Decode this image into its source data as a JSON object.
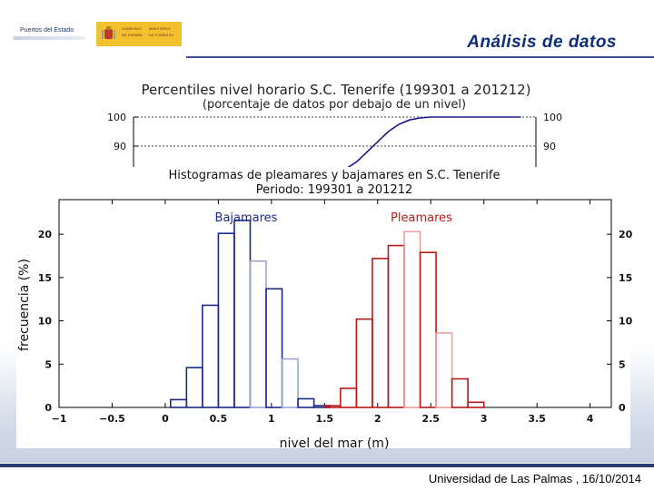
{
  "header": {
    "title": "Análisis de datos",
    "logo_ports_text": "Puertos del Estado",
    "logo_gov_text": [
      "GOBIERNO",
      "DE ESPAÑA",
      "MINISTERIO",
      "DE FOMENTO"
    ]
  },
  "footer": {
    "text": "Universidad de Las Palmas , 16/10/2014"
  },
  "chart_data": [
    {
      "type": "line",
      "title": "Percentiles nivel horario S.C. Tenerife (199301 a 201212)",
      "subtitle": "(porcentaje de datos por debajo de un nivel)",
      "ytick_labels": [
        "90",
        "100"
      ],
      "ylim": [
        80,
        100
      ],
      "x": [
        1.7,
        1.8,
        1.9,
        2.0,
        2.1,
        2.2,
        2.3,
        2.4,
        2.5,
        2.6,
        3.0,
        3.35
      ],
      "series": [
        {
          "values": [
            81,
            84.5,
            88,
            91.5,
            95,
            97.5,
            99,
            99.7,
            100,
            100,
            100,
            100
          ]
        }
      ],
      "color": "#1a1a8c"
    },
    {
      "type": "bar",
      "title": "Histogramas de pleamares y bajamares en S.C. Tenerife",
      "subtitle": "Periodo: 199301 a 201212",
      "xlabel": "nivel del mar (m)",
      "ylabel": "frecuencia (%)",
      "xlim": [
        -1,
        4.2
      ],
      "ylim": [
        0,
        24
      ],
      "xtick_labels": [
        "−1",
        "−0.5",
        "0",
        "0.5",
        "1",
        "1.5",
        "2",
        "2.5",
        "3",
        "3.5",
        "4"
      ],
      "xticks": [
        -1,
        -0.5,
        0,
        0.5,
        1,
        1.5,
        2,
        2.5,
        3,
        3.5,
        4
      ],
      "ytick_labels": [
        "0",
        "5",
        "10",
        "15",
        "20"
      ],
      "yticks": [
        0,
        5,
        10,
        15,
        20
      ],
      "bin_width": 0.15,
      "series": [
        {
          "name": "Bajamares",
          "color": "#1a2a8a",
          "fade_color": "#9aa4d0",
          "bin_starts": [
            0.05,
            0.2,
            0.35,
            0.5,
            0.65,
            0.8,
            0.95,
            1.1,
            1.25,
            1.4
          ],
          "values": [
            0.9,
            4.6,
            11.8,
            20.1,
            21.6,
            16.9,
            13.7,
            5.6,
            1.0,
            0.2
          ]
        },
        {
          "name": "Pleamares",
          "color": "#b81818",
          "fade_color": "#e8a0a0",
          "bin_starts": [
            1.5,
            1.65,
            1.8,
            1.95,
            2.1,
            2.25,
            2.4,
            2.55,
            2.7,
            2.85
          ],
          "values": [
            0.2,
            2.2,
            10.2,
            17.2,
            18.7,
            20.3,
            17.9,
            8.6,
            3.3,
            0.6
          ]
        }
      ]
    }
  ]
}
